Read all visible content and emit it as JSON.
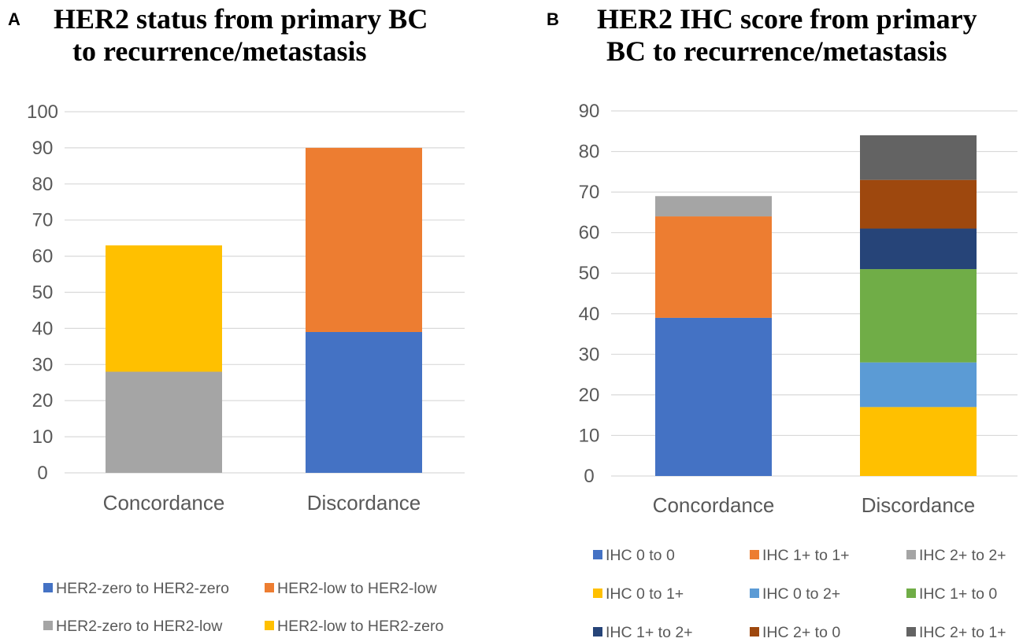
{
  "chart_data": [
    {
      "panel": "A",
      "type": "bar",
      "stacked": true,
      "title_lines": [
        "HER2 status from primary BC",
        "to recurrence/metastasis"
      ],
      "categories": [
        "Concordance",
        "Discordance"
      ],
      "ylim": [
        0,
        100
      ],
      "yticks": [
        0,
        10,
        20,
        30,
        40,
        50,
        60,
        70,
        80,
        90,
        100
      ],
      "grid": true,
      "legend_position": "bottom",
      "series": [
        {
          "name": "HER2-zero to HER2-zero",
          "color": "#4472C4",
          "values": [
            0,
            39
          ]
        },
        {
          "name": "HER2-low to HER2-low",
          "color": "#ED7D31",
          "values": [
            0,
            51
          ]
        },
        {
          "name": "HER2-zero to HER2-low",
          "color": "#A5A5A5",
          "values": [
            28,
            0
          ]
        },
        {
          "name": "HER2-low to HER2-zero",
          "color": "#FFC000",
          "values": [
            35,
            0
          ]
        }
      ]
    },
    {
      "panel": "B",
      "type": "bar",
      "stacked": true,
      "title_lines": [
        "HER2 IHC score from primary",
        "BC to recurrence/metastasis"
      ],
      "categories": [
        "Concordance",
        "Discordance"
      ],
      "ylim": [
        0,
        90
      ],
      "yticks": [
        0,
        10,
        20,
        30,
        40,
        50,
        60,
        70,
        80,
        90
      ],
      "grid": true,
      "legend_position": "bottom",
      "series": [
        {
          "name": "IHC 0 to 0",
          "color": "#4472C4",
          "values": [
            39,
            0
          ]
        },
        {
          "name": "IHC 1+ to 1+",
          "color": "#ED7D31",
          "values": [
            25,
            0
          ]
        },
        {
          "name": "IHC 2+ to 2+",
          "color": "#A5A5A5",
          "values": [
            5,
            0
          ]
        },
        {
          "name": "IHC 0 to 1+",
          "color": "#FFC000",
          "values": [
            0,
            17
          ]
        },
        {
          "name": "IHC 0 to 2+",
          "color": "#5B9BD5",
          "values": [
            0,
            11
          ]
        },
        {
          "name": "IHC 1+ to 0",
          "color": "#70AD47",
          "values": [
            0,
            23
          ]
        },
        {
          "name": "IHC 1+ to 2+",
          "color": "#264478",
          "values": [
            0,
            10
          ]
        },
        {
          "name": "IHC 2+ to 0",
          "color": "#9E480E",
          "values": [
            0,
            12
          ]
        },
        {
          "name": "IHC 2+ to 1+",
          "color": "#636363",
          "values": [
            0,
            11
          ]
        }
      ]
    }
  ]
}
